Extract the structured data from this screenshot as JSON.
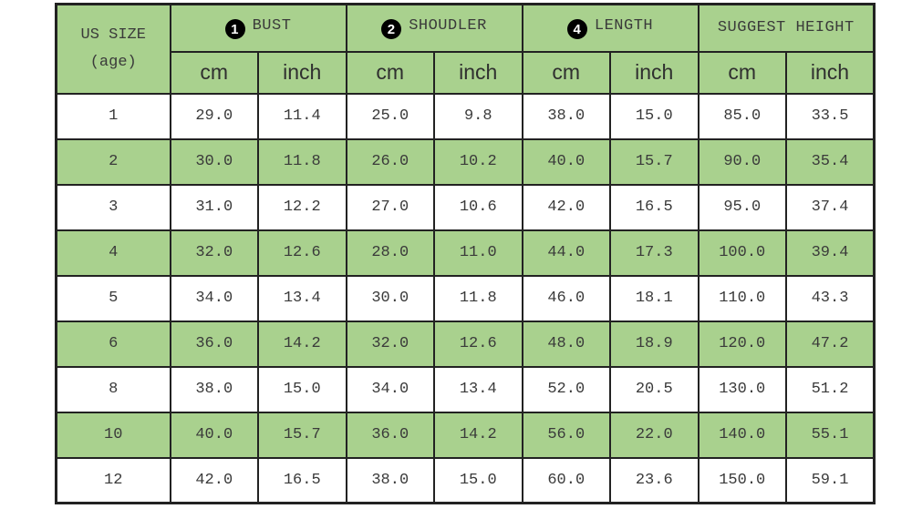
{
  "colors": {
    "green": "#a9d18e",
    "border": "#222222",
    "text": "#3a3a3a",
    "background": "#ffffff"
  },
  "chart_data": {
    "type": "table",
    "corner": {
      "line1": "US SIZE",
      "line2": "(age)"
    },
    "groups": [
      {
        "badge": "1",
        "label": "BUST"
      },
      {
        "badge": "2",
        "label": "SHOUDLER"
      },
      {
        "badge": "4",
        "label": "LENGTH"
      },
      {
        "badge": "",
        "label": "SUGGEST HEIGHT"
      }
    ],
    "units": [
      "cm",
      "inch",
      "cm",
      "inch",
      "cm",
      "inch",
      "cm",
      "inch"
    ],
    "rows": [
      {
        "size": "1",
        "values": [
          "29.0",
          "11.4",
          "25.0",
          "9.8",
          "38.0",
          "15.0",
          "85.0",
          "33.5"
        ],
        "shaded": false
      },
      {
        "size": "2",
        "values": [
          "30.0",
          "11.8",
          "26.0",
          "10.2",
          "40.0",
          "15.7",
          "90.0",
          "35.4"
        ],
        "shaded": true
      },
      {
        "size": "3",
        "values": [
          "31.0",
          "12.2",
          "27.0",
          "10.6",
          "42.0",
          "16.5",
          "95.0",
          "37.4"
        ],
        "shaded": false
      },
      {
        "size": "4",
        "values": [
          "32.0",
          "12.6",
          "28.0",
          "11.0",
          "44.0",
          "17.3",
          "100.0",
          "39.4"
        ],
        "shaded": true
      },
      {
        "size": "5",
        "values": [
          "34.0",
          "13.4",
          "30.0",
          "11.8",
          "46.0",
          "18.1",
          "110.0",
          "43.3"
        ],
        "shaded": false
      },
      {
        "size": "6",
        "values": [
          "36.0",
          "14.2",
          "32.0",
          "12.6",
          "48.0",
          "18.9",
          "120.0",
          "47.2"
        ],
        "shaded": true
      },
      {
        "size": "8",
        "values": [
          "38.0",
          "15.0",
          "34.0",
          "13.4",
          "52.0",
          "20.5",
          "130.0",
          "51.2"
        ],
        "shaded": false
      },
      {
        "size": "10",
        "values": [
          "40.0",
          "15.7",
          "36.0",
          "14.2",
          "56.0",
          "22.0",
          "140.0",
          "55.1"
        ],
        "shaded": true
      },
      {
        "size": "12",
        "values": [
          "42.0",
          "16.5",
          "38.0",
          "15.0",
          "60.0",
          "23.6",
          "150.0",
          "59.1"
        ],
        "shaded": false
      }
    ]
  }
}
